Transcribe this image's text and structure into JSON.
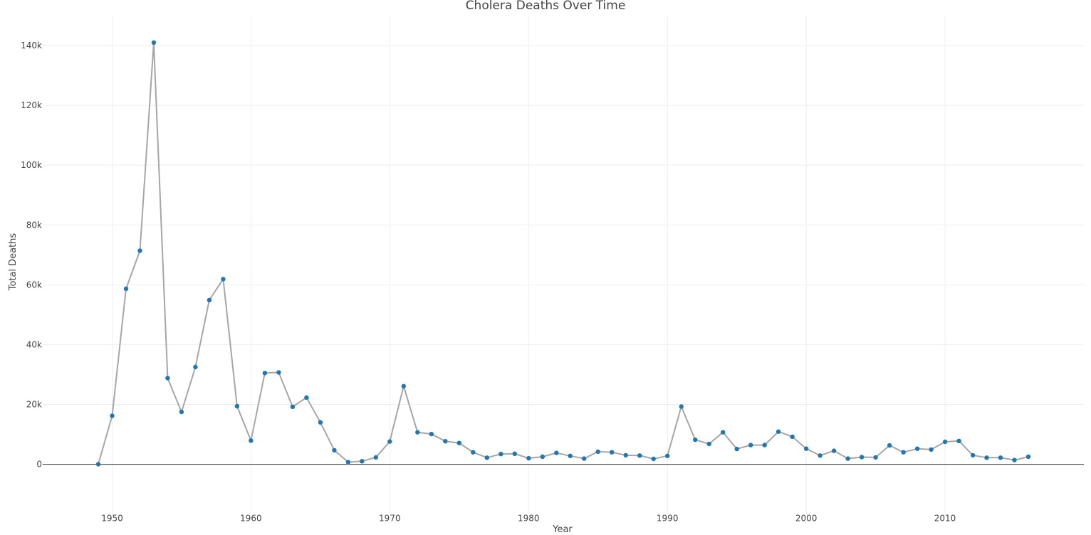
{
  "chart_data": {
    "type": "line",
    "title": "Cholera Deaths Over Time",
    "xlabel": "Year",
    "ylabel": "Total Deaths",
    "xlim": [
      1945,
      2020
    ],
    "ylim": [
      -17000,
      150000
    ],
    "x_ticks": [
      1950,
      1960,
      1970,
      1980,
      1990,
      2000,
      2010
    ],
    "y_ticks": [
      0,
      20000,
      40000,
      60000,
      80000,
      100000,
      120000,
      140000
    ],
    "y_tick_labels": [
      "0",
      "20k",
      "40k",
      "60k",
      "80k",
      "100k",
      "120k",
      "140k"
    ],
    "grid": true,
    "line_color": "#a6a6a6",
    "marker_color": "#1f77b4",
    "x": [
      1949,
      1950,
      1951,
      1952,
      1953,
      1954,
      1955,
      1956,
      1957,
      1958,
      1959,
      1960,
      1961,
      1962,
      1963,
      1964,
      1965,
      1966,
      1967,
      1968,
      1969,
      1970,
      1971,
      1972,
      1973,
      1974,
      1975,
      1976,
      1977,
      1978,
      1979,
      1980,
      1981,
      1982,
      1983,
      1984,
      1985,
      1986,
      1987,
      1988,
      1989,
      1990,
      1991,
      1992,
      1993,
      1994,
      1995,
      1996,
      1997,
      1998,
      1999,
      2000,
      2001,
      2002,
      2003,
      2004,
      2005,
      2006,
      2007,
      2008,
      2009,
      2010,
      2011,
      2012,
      2013,
      2014,
      2015,
      2016
    ],
    "y": [
      0,
      16200,
      58700,
      71400,
      141000,
      28800,
      17500,
      32500,
      54900,
      61900,
      19400,
      7900,
      30500,
      30700,
      19200,
      22300,
      14000,
      4700,
      700,
      1000,
      2300,
      7600,
      26100,
      10700,
      10100,
      7700,
      7100,
      4000,
      2200,
      3400,
      3500,
      2000,
      2500,
      3800,
      2800,
      1900,
      4200,
      4000,
      3000,
      2900,
      1800,
      2800,
      19300,
      8200,
      6800,
      10700,
      5100,
      6400,
      6400,
      10900,
      9200,
      5200,
      2900,
      4500,
      1900,
      2400,
      2300,
      6300,
      4000,
      5200,
      4900,
      7500,
      7800,
      3000,
      2200,
      2200,
      1400,
      2500
    ]
  }
}
